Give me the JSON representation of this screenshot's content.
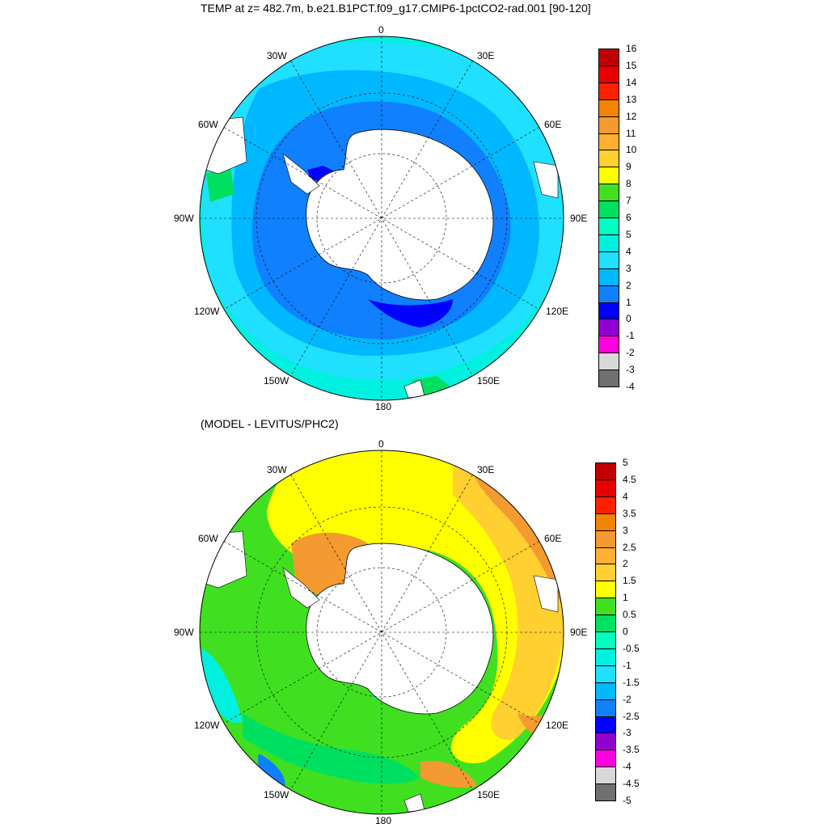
{
  "top_panel": {
    "title": "TEMP at z= 482.7m, b.e21.B1PCT.f09_g17.CMIP6-1pctCO2-rad.001 [90-120]",
    "longitude_labels": {
      "n": "0",
      "nne": "30E",
      "ene": "60E",
      "e": "90E",
      "ese": "120E",
      "sse": "150E",
      "s": "180",
      "ssw": "150W",
      "wsw": "120W",
      "w": "90W",
      "wnw": "60W",
      "nnw": "30W"
    },
    "colorbar": {
      "levels": [
        "16",
        "15",
        "14",
        "13",
        "12",
        "11",
        "10",
        "9",
        "8",
        "7",
        "6",
        "5",
        "4",
        "3",
        "2",
        "1",
        "0",
        "-1",
        "-2",
        "-3",
        "-4"
      ],
      "colors": [
        "#c00000",
        "#e80000",
        "#ff2000",
        "#f58200",
        "#f59a30",
        "#ffb030",
        "#ffd030",
        "#ffff00",
        "#40e020",
        "#00e060",
        "#00ffc0",
        "#00f0e0",
        "#20e0ff",
        "#00b8ff",
        "#1080ff",
        "#0000ff",
        "#9000d0",
        "#ff00e0",
        "#d8d8d8",
        "#707070"
      ]
    }
  },
  "bottom_panel": {
    "title": "(MODEL - LEVITUS/PHC2)",
    "longitude_labels": {
      "n": "0",
      "nne": "30E",
      "ene": "60E",
      "e": "90E",
      "ese": "120E",
      "sse": "150E",
      "s": "180",
      "ssw": "150W",
      "wsw": "120W",
      "w": "90W",
      "wnw": "60W",
      "nnw": "30W"
    },
    "colorbar": {
      "levels": [
        "5",
        "4.5",
        "4",
        "3.5",
        "3",
        "2.5",
        "2",
        "1.5",
        "1",
        "0.5",
        "0",
        "-0.5",
        "-1",
        "-1.5",
        "-2",
        "-2.5",
        "-3",
        "-3.5",
        "-4",
        "-4.5",
        "-5"
      ],
      "colors": [
        "#c00000",
        "#e80000",
        "#ff2000",
        "#f58200",
        "#f59a30",
        "#ffb030",
        "#ffd030",
        "#ffff00",
        "#40e020",
        "#00e060",
        "#00ffc0",
        "#00f0e0",
        "#20e0ff",
        "#00b8ff",
        "#1080ff",
        "#0000ff",
        "#9000d0",
        "#ff00e0",
        "#d8d8d8",
        "#707070"
      ]
    }
  }
}
